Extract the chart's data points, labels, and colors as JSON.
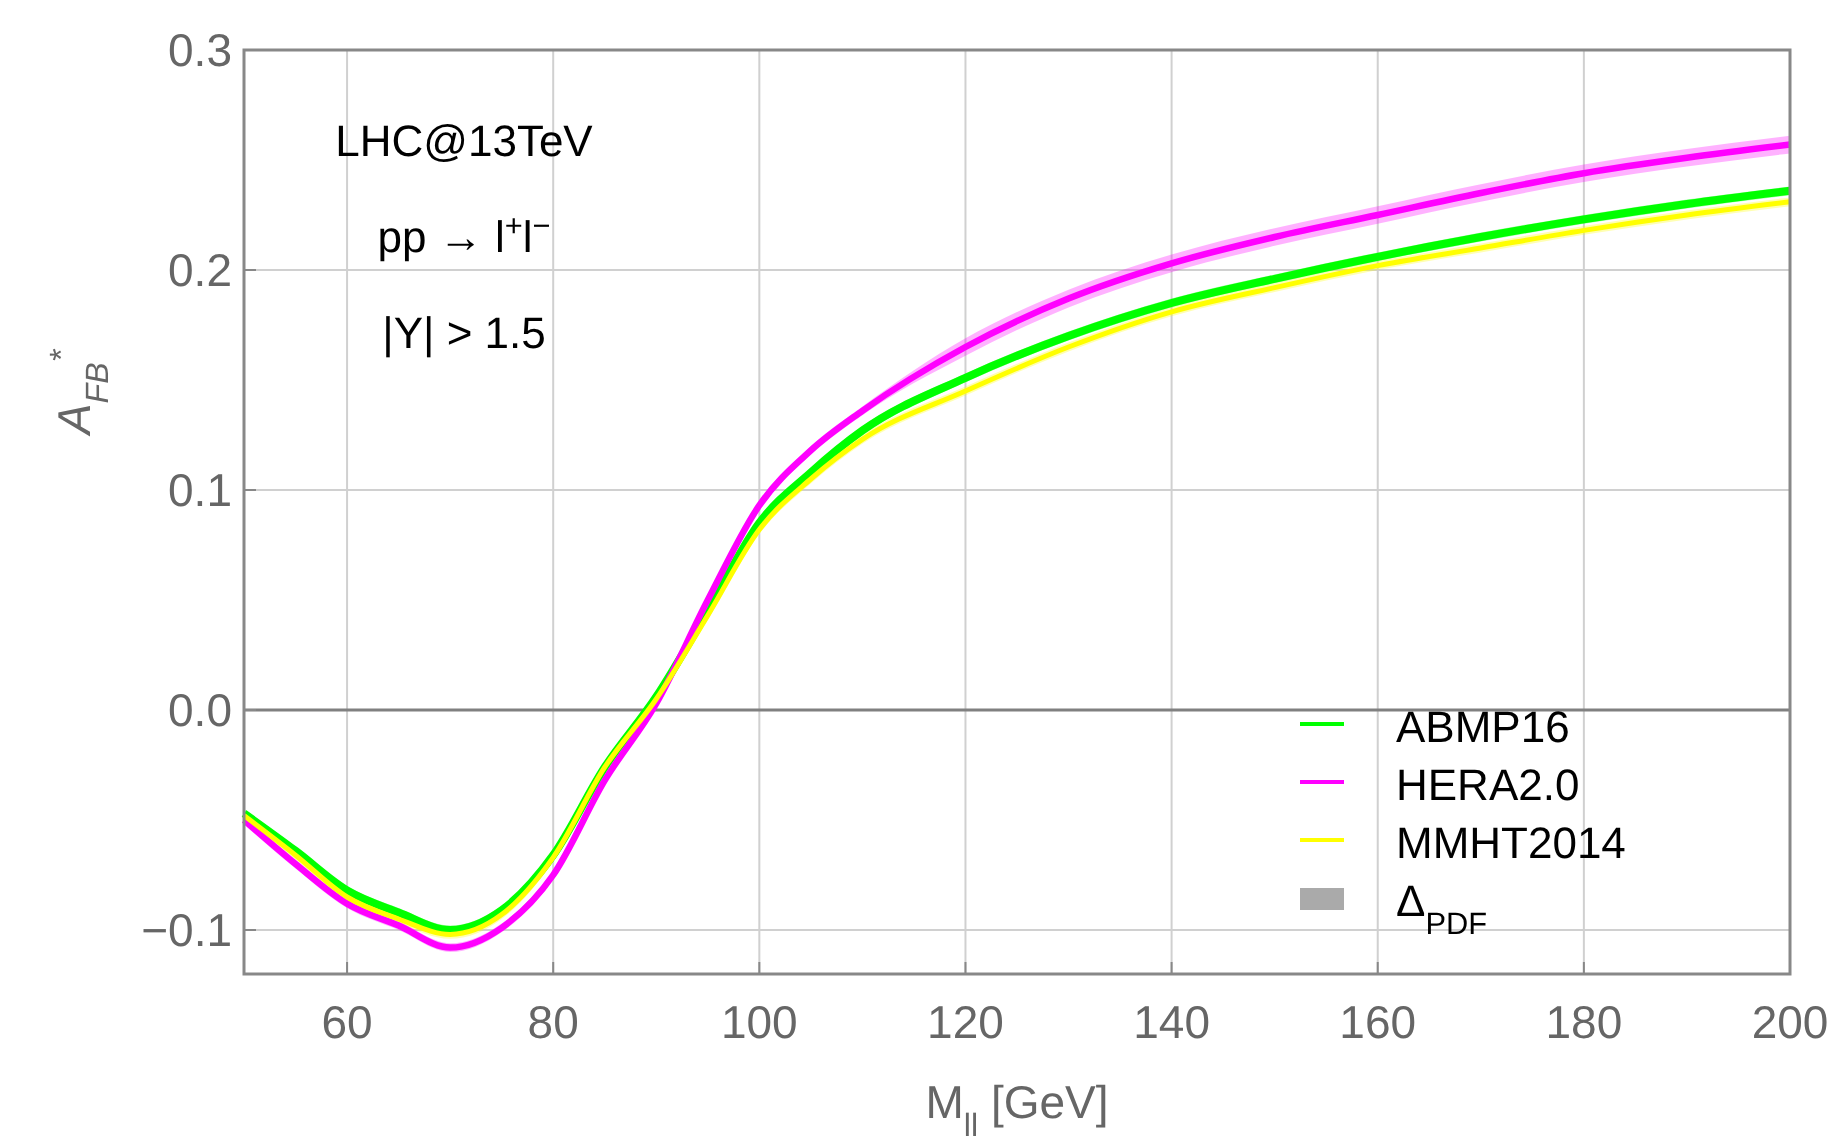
{
  "chart_data": {
    "type": "line",
    "xlabel": "M$_{ll}$  [GeV]",
    "ylabel": "A$_{FB}$$^{*}$",
    "annotations": [
      "LHC@13TeV",
      "pp → l$^{+}$l$^{−}$",
      "|Y| > 1.5",
      "Δ$_{PDF}$"
    ],
    "x": [
      50,
      55,
      60,
      65,
      70,
      75,
      80,
      85,
      90,
      95,
      100,
      105,
      110,
      120,
      130,
      140,
      150,
      160,
      170,
      180,
      190,
      200
    ],
    "series": [
      {
        "name": "ABMP16",
        "color": "#00ff00",
        "values": [
          -0.047,
          -0.064,
          -0.082,
          -0.092,
          -0.1,
          -0.091,
          -0.066,
          -0.026,
          0.006,
          0.045,
          0.085,
          0.108,
          0.127,
          0.151,
          0.17,
          0.185,
          0.196,
          0.206,
          0.215,
          0.223,
          0.23,
          0.236
        ],
        "lower": [
          -0.049,
          -0.066,
          -0.084,
          -0.094,
          -0.102,
          -0.093,
          -0.068,
          -0.028,
          0.004,
          0.043,
          0.083,
          0.106,
          0.125,
          0.149,
          0.168,
          0.183,
          0.194,
          0.204,
          0.213,
          0.221,
          0.228,
          0.234
        ],
        "upper": [
          -0.045,
          -0.062,
          -0.08,
          -0.09,
          -0.098,
          -0.089,
          -0.064,
          -0.024,
          0.008,
          0.047,
          0.087,
          0.11,
          0.129,
          0.153,
          0.172,
          0.187,
          0.198,
          0.208,
          0.217,
          0.225,
          0.232,
          0.238
        ]
      },
      {
        "name": "HERA2.0",
        "color": "#ff00ff",
        "values": [
          -0.05,
          -0.07,
          -0.088,
          -0.098,
          -0.108,
          -0.099,
          -0.075,
          -0.032,
          0.003,
          0.05,
          0.093,
          0.118,
          0.136,
          0.165,
          0.187,
          0.203,
          0.215,
          0.225,
          0.235,
          0.244,
          0.251,
          0.257
        ],
        "lower": [
          -0.052,
          -0.072,
          -0.09,
          -0.1,
          -0.11,
          -0.101,
          -0.077,
          -0.034,
          0.001,
          0.048,
          0.091,
          0.116,
          0.134,
          0.161,
          0.183,
          0.199,
          0.211,
          0.221,
          0.231,
          0.24,
          0.247,
          0.253
        ],
        "upper": [
          -0.048,
          -0.068,
          -0.086,
          -0.096,
          -0.106,
          -0.097,
          -0.073,
          -0.03,
          0.005,
          0.052,
          0.095,
          0.12,
          0.138,
          0.169,
          0.191,
          0.207,
          0.219,
          0.229,
          0.239,
          0.248,
          0.255,
          0.261
        ]
      },
      {
        "name": "MMHT2014",
        "color": "#ffff00",
        "values": [
          -0.048,
          -0.066,
          -0.085,
          -0.095,
          -0.102,
          -0.093,
          -0.067,
          -0.026,
          0.005,
          0.043,
          0.082,
          0.105,
          0.123,
          0.145,
          0.165,
          0.181,
          0.192,
          0.202,
          0.21,
          0.218,
          0.225,
          0.231
        ],
        "lower": [
          -0.05,
          -0.068,
          -0.087,
          -0.097,
          -0.104,
          -0.095,
          -0.069,
          -0.028,
          0.003,
          0.041,
          0.08,
          0.103,
          0.121,
          0.143,
          0.163,
          0.179,
          0.19,
          0.2,
          0.208,
          0.216,
          0.223,
          0.229
        ],
        "upper": [
          -0.046,
          -0.064,
          -0.083,
          -0.093,
          -0.1,
          -0.091,
          -0.065,
          -0.024,
          0.007,
          0.045,
          0.084,
          0.107,
          0.125,
          0.147,
          0.167,
          0.183,
          0.194,
          0.204,
          0.212,
          0.22,
          0.227,
          0.233
        ]
      }
    ],
    "xlim": [
      50,
      200
    ],
    "xticks": [
      60,
      80,
      100,
      120,
      140,
      160,
      180,
      200
    ],
    "ylim": [
      -0.12,
      0.3
    ],
    "yticks": [
      {
        "value": -0.1,
        "label": "−0.1"
      },
      {
        "value": 0,
        "label": "0.0"
      },
      0.1,
      0.2,
      0.3
    ],
    "ref_lines": [
      {
        "axis": "y",
        "value": 0,
        "color": "#808080"
      }
    ],
    "grid": true,
    "legend": "bottom right"
  }
}
